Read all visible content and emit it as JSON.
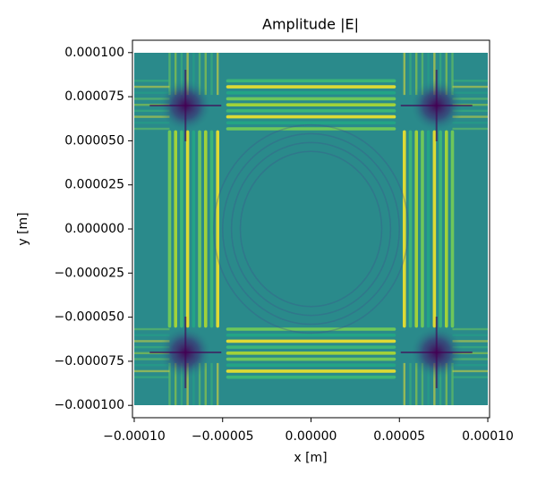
{
  "chart_data": {
    "type": "heatmap",
    "title": "Amplitude |E|",
    "xlabel": "x [m]",
    "ylabel": "y [m]",
    "extent": [
      -0.0001,
      0.0001,
      -0.0001,
      0.0001
    ],
    "xlim": [
      -0.000101,
      0.000101
    ],
    "ylim": [
      -0.000107,
      0.000107
    ],
    "xticks": [
      {
        "value": -0.0001,
        "label": "−0.00010"
      },
      {
        "value": -5e-05,
        "label": "−0.00005"
      },
      {
        "value": 0,
        "label": "0.00000"
      },
      {
        "value": 5e-05,
        "label": "0.00005"
      },
      {
        "value": 0.0001,
        "label": "0.00010"
      }
    ],
    "yticks": [
      {
        "value": 0.0001,
        "label": "0.000100"
      },
      {
        "value": 7.5e-05,
        "label": "0.000075"
      },
      {
        "value": 5e-05,
        "label": "0.000050"
      },
      {
        "value": 2.5e-05,
        "label": "0.000025"
      },
      {
        "value": 0,
        "label": "0.000000"
      },
      {
        "value": -2.5e-05,
        "label": "−0.000025"
      },
      {
        "value": -5e-05,
        "label": "−0.000050"
      },
      {
        "value": -7.5e-05,
        "label": "−0.000075"
      },
      {
        "value": -0.0001,
        "label": "−0.000100"
      }
    ]
  }
}
